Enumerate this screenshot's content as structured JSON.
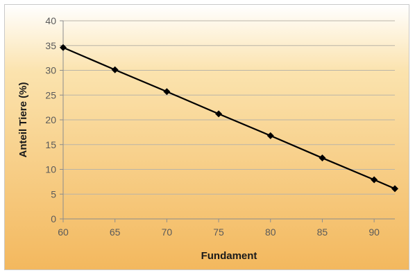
{
  "chart_data": {
    "type": "line",
    "title": "",
    "xlabel": "Fundament",
    "ylabel": "Anteil Tiere (%)",
    "xlim": [
      60,
      92
    ],
    "ylim": [
      0,
      40
    ],
    "x_ticks": [
      60,
      65,
      70,
      75,
      80,
      85,
      90
    ],
    "y_ticks": [
      0,
      5,
      10,
      15,
      20,
      25,
      30,
      35,
      40
    ],
    "grid": true,
    "legend": "none",
    "series": [
      {
        "x": [
          60,
          65,
          70,
          75,
          80,
          85,
          90,
          92
        ],
        "y": [
          34.6,
          30.1,
          25.7,
          21.2,
          16.8,
          12.3,
          7.9,
          6.1
        ],
        "color": "#000000",
        "marker": "diamond"
      }
    ],
    "background_gradient": [
      "#ffffff",
      "#fbe3ae",
      "#f3b85e"
    ]
  }
}
